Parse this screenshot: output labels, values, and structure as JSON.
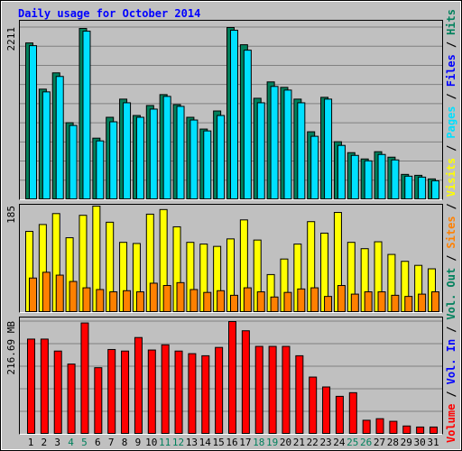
{
  "title": "Daily usage for October 2014",
  "legend_separator": "/",
  "legend": [
    {
      "text": "Volume",
      "color": "#ff0000"
    },
    {
      "text": "Vol. In",
      "color": "#0000ff"
    },
    {
      "text": "Vol. Out",
      "color": "#00805c"
    },
    {
      "text": "Sites",
      "color": "#ff8000"
    },
    {
      "text": "Visits",
      "color": "#ffff00"
    },
    {
      "text": "Pages",
      "color": "#00e0ff"
    },
    {
      "text": "Files",
      "color": "#0000ff"
    },
    {
      "text": "Hits",
      "color": "#00805c"
    }
  ],
  "chart_data": [
    {
      "type": "bar",
      "ylim": [
        0,
        2211
      ],
      "yticks": [
        2211
      ],
      "series": [
        {
          "color": "#00805c",
          "values": [
            2013,
            1420,
            1629,
            989,
            2199,
            791,
            1059,
            1292,
            1082,
            1210,
            1350,
            1222,
            1059,
            908,
            1140,
            2211,
            1990,
            1303,
            1513,
            1443,
            1292,
            873,
            1315,
            745,
            605,
            524,
            617,
            547,
            326,
            314,
            268
          ]
        },
        {
          "color": "#00e0ff",
          "values": [
            1978,
            1385,
            1583,
            954,
            2164,
            756,
            1001,
            1245,
            1059,
            1164,
            1327,
            1199,
            1024,
            884,
            1082,
            2176,
            1920,
            1245,
            1455,
            1408,
            1245,
            815,
            1292,
            698,
            570,
            500,
            582,
            512,
            303,
            291,
            244
          ]
        }
      ]
    },
    {
      "type": "bar",
      "ylim": [
        0,
        185
      ],
      "yticks": [
        185
      ],
      "series": [
        {
          "color": "#ffff00",
          "values": [
            141,
            153,
            172,
            130,
            169,
            185,
            157,
            122,
            120,
            171,
            179,
            149,
            122,
            119,
            115,
            128,
            161,
            126,
            66,
            93,
            119,
            158,
            138,
            174,
            122,
            111,
            123,
            101,
            89,
            82,
            76
          ]
        },
        {
          "color": "#ff8000",
          "values": [
            60,
            70,
            65,
            54,
            43,
            40,
            36,
            38,
            36,
            51,
            47,
            52,
            40,
            35,
            38,
            30,
            43,
            36,
            27,
            35,
            41,
            43,
            28,
            47,
            32,
            36,
            36,
            30,
            28,
            32,
            36
          ]
        }
      ]
    },
    {
      "type": "bar",
      "ylim": [
        0,
        216.69
      ],
      "yticks": [
        {
          "value": 216.69,
          "label": "216.69 MB"
        }
      ],
      "categories": [
        "1",
        "2",
        "3",
        "4",
        "5",
        "6",
        "7",
        "8",
        "9",
        "10",
        "11",
        "12",
        "13",
        "14",
        "15",
        "16",
        "17",
        "18",
        "19",
        "20",
        "21",
        "22",
        "23",
        "24",
        "25",
        "26",
        "27",
        "28",
        "29",
        "30",
        "31"
      ],
      "category_colors": [
        "#000000",
        "#000000",
        "#000000",
        "#00805c",
        "#00805c",
        "#000000",
        "#000000",
        "#000000",
        "#000000",
        "#000000",
        "#00805c",
        "#00805c",
        "#000000",
        "#000000",
        "#000000",
        "#000000",
        "#000000",
        "#00805c",
        "#00805c",
        "#000000",
        "#000000",
        "#000000",
        "#000000",
        "#000000",
        "#00805c",
        "#00805c",
        "#000000",
        "#000000",
        "#000000",
        "#000000",
        "#000000"
      ],
      "series": [
        {
          "color": "#ff0000",
          "values": [
            183,
            183,
            160,
            135,
            214,
            128,
            163,
            160,
            186,
            162,
            172,
            160,
            155,
            151,
            167,
            216.69,
            199,
            169,
            169,
            169,
            151,
            110,
            91,
            73,
            80,
            27,
            30,
            25,
            16,
            14,
            14
          ]
        }
      ]
    }
  ]
}
